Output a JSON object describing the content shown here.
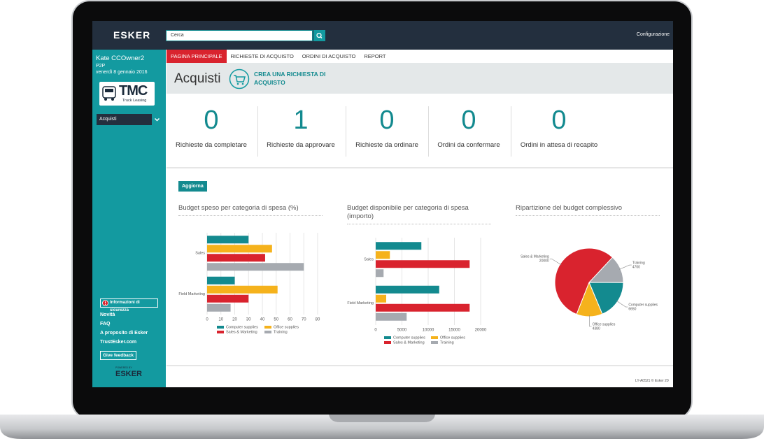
{
  "header": {
    "logo": "ESKER",
    "search_placeholder": "Cerca",
    "settings": "Configurazione"
  },
  "sidebar": {
    "user": "Kate CCOwner2",
    "role": "P2P",
    "date": "venerdì 8 gennaio 2016",
    "company_logo": "TMC",
    "company_tagline": "Truck Leasing",
    "menu": "Acquisti",
    "security": "Informazioni di sicurezza",
    "links": [
      "Novità",
      "FAQ",
      "A proposito di Esker",
      "TrustEsker.com"
    ],
    "feedback": "Give feedback",
    "powered_by": "POWERED BY",
    "footer_logo": "ESKER"
  },
  "tabs": [
    "PAGINA PRINCIPALE",
    "RICHIESTE DI ACQUISTO",
    "ORDINI DI ACQUISTO",
    "REPORT"
  ],
  "page": {
    "title": "Acquisti",
    "action": "CREA UNA RICHIESTA DI ACQUISTO"
  },
  "kpis": [
    {
      "value": 0,
      "label": "Richieste da completare"
    },
    {
      "value": 1,
      "label": "Richieste da approvare"
    },
    {
      "value": 0,
      "label": "Richieste da ordinare"
    },
    {
      "value": 0,
      "label": "Ordini da confermare"
    },
    {
      "value": 0,
      "label": "Ordini in attesa di recapito"
    }
  ],
  "refresh": "Aggiorna",
  "chart_data": [
    {
      "type": "bar",
      "orientation": "horizontal",
      "title": "Budget speso per categoria di spesa (%)",
      "categories": [
        "Sales",
        "Field Marketing"
      ],
      "series": [
        {
          "name": "Computer supplies",
          "color": "#138a8f",
          "values": [
            30,
            20
          ]
        },
        {
          "name": "Office supplies",
          "color": "#f5b21c",
          "values": [
            47,
            51
          ]
        },
        {
          "name": "Sales & Marketing",
          "color": "#d9232e",
          "values": [
            42,
            30
          ]
        },
        {
          "name": "Training",
          "color": "#a6aab0",
          "values": [
            70,
            17
          ]
        }
      ],
      "xlim": [
        0,
        80
      ],
      "xticks": [
        0,
        10,
        20,
        30,
        40,
        50,
        60,
        70,
        80
      ],
      "grid": true
    },
    {
      "type": "bar",
      "orientation": "horizontal",
      "title": "Budget disponibile per categoria di spesa (importo)",
      "categories": [
        "Sales",
        "Field Marketing"
      ],
      "series": [
        {
          "name": "Computer supplies",
          "color": "#138a8f",
          "values": [
            8700,
            12100
          ]
        },
        {
          "name": "Office supplies",
          "color": "#f5b21c",
          "values": [
            2700,
            2000
          ]
        },
        {
          "name": "Sales & Marketing",
          "color": "#d9232e",
          "values": [
            17900,
            17900
          ]
        },
        {
          "name": "Training",
          "color": "#a6aab0",
          "values": [
            1500,
            5900
          ]
        }
      ],
      "xlim": [
        0,
        20000
      ],
      "xticks": [
        0,
        5000,
        10000,
        15000,
        20000
      ],
      "grid": true
    },
    {
      "type": "pie",
      "title": "Ripartizione del budget complessivo",
      "categories": [
        "Training",
        "Computer supplies",
        "Office supplies",
        "Sales & Marketing"
      ],
      "values": [
        4700,
        6650,
        4380,
        20000
      ],
      "colors": [
        "#a6aab0",
        "#138a8f",
        "#f5b21c",
        "#d9232e"
      ]
    }
  ],
  "footer": "LY-A0521 © Esker 20"
}
